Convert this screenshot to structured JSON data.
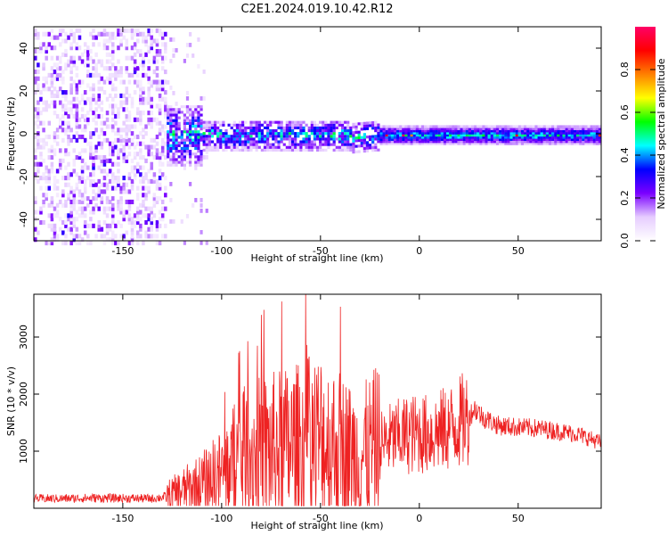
{
  "title": "C2E1.2024.019.10.42.R12",
  "chart_data": [
    {
      "type": "heatmap",
      "xlabel": "Height of straight line (km)",
      "ylabel": "Frequency (Hz)",
      "xlim": [
        -195,
        92
      ],
      "ylim": [
        -50,
        50
      ],
      "xticks": [
        -150,
        -100,
        -50,
        0,
        50
      ],
      "yticks": [
        -40,
        -20,
        0,
        20,
        40
      ],
      "xtick_labels": [
        "-150",
        "-100",
        "-50",
        "0",
        "50"
      ],
      "ytick_labels": [
        "-40",
        "-20",
        "0",
        "20",
        "40"
      ],
      "colorbar": {
        "label": "Normalized spectral amplitude",
        "range": [
          0,
          1
        ],
        "ticks": [
          0.0,
          0.2,
          0.4,
          0.6,
          0.8
        ],
        "tick_labels": [
          "0.0",
          "0.2",
          "0.4",
          "0.6",
          "0.8"
        ],
        "colors": [
          "#ffffff",
          "#e6ccff",
          "#7a00ff",
          "#0000ff",
          "#00ffff",
          "#00ff00",
          "#ffff00",
          "#ff8000",
          "#ff0000",
          "#ff0066"
        ]
      },
      "regions": [
        {
          "x_range": [
            -195,
            -128
          ],
          "freq_range": [
            -50,
            50
          ],
          "amplitude": "scattered, ~0.05-0.25"
        },
        {
          "x_range": [
            -128,
            -20
          ],
          "freq_range": [
            -8,
            8
          ],
          "amplitude": "~0.2-0.6"
        },
        {
          "x_range": [
            -20,
            92
          ],
          "freq_range": [
            -4,
            4
          ],
          "amplitude": "~0.3-0.9, peaks near 0 Hz"
        }
      ],
      "grid": false
    },
    {
      "type": "line",
      "xlabel": "Height of straight line (km)",
      "ylabel": "SNR (10 * v/v)",
      "xlim": [
        -195,
        92
      ],
      "ylim": [
        0,
        3750
      ],
      "xticks": [
        -150,
        -100,
        -50,
        0,
        50
      ],
      "yticks": [
        1000,
        2000,
        3000
      ],
      "xtick_labels": [
        "-150",
        "-100",
        "-50",
        "0",
        "50"
      ],
      "ytick_labels": [
        "1000",
        "2000",
        "3000"
      ],
      "series": [
        {
          "color": "#ee2222",
          "x": [
            -195,
            -180,
            -165,
            -150,
            -135,
            -128,
            -120,
            -110,
            -100,
            -90,
            -80,
            -70,
            -60,
            -55,
            -50,
            -45,
            -40,
            -35,
            -30,
            -25,
            -20,
            -15,
            -10,
            -5,
            0,
            5,
            10,
            15,
            20,
            25,
            28,
            32,
            40,
            50,
            60,
            70,
            80,
            92
          ],
          "values": [
            170,
            170,
            180,
            175,
            170,
            200,
            300,
            420,
            600,
            900,
            1000,
            1050,
            1100,
            1150,
            1200,
            1100,
            1050,
            950,
            900,
            1000,
            1100,
            1200,
            1250,
            1300,
            1300,
            1300,
            1350,
            1400,
            1500,
            1600,
            1750,
            1600,
            1450,
            1420,
            1400,
            1350,
            1300,
            1150
          ]
        }
      ],
      "grid": false
    }
  ]
}
